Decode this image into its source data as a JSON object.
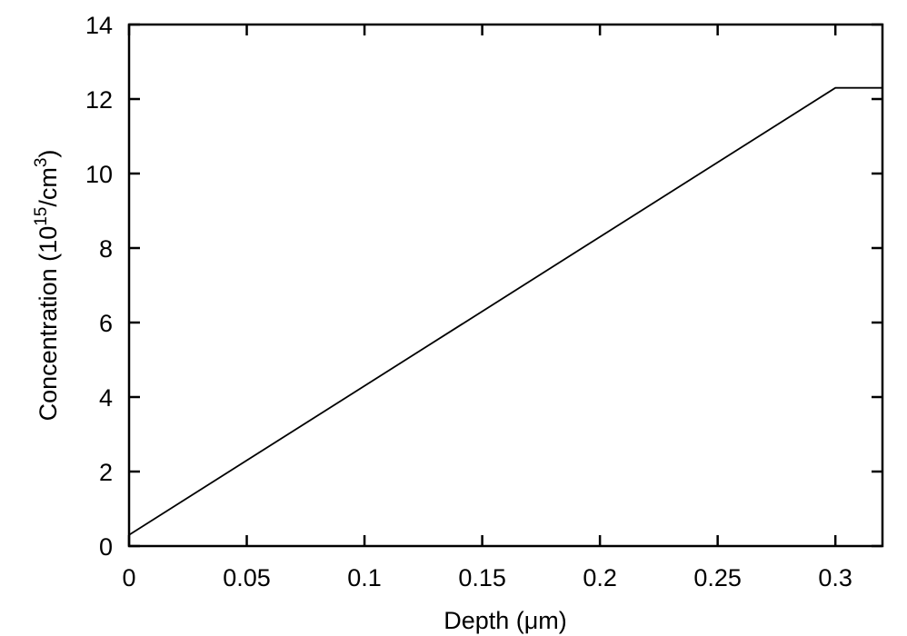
{
  "chart_data": {
    "type": "line",
    "xlabel": "Depth (μm)",
    "ylabel": {
      "prefix": "Concentration (10",
      "sup1": "15",
      "mid": "/cm",
      "sup2": "3",
      "suffix": ")"
    },
    "xlim": [
      0,
      0.32
    ],
    "ylim": [
      0,
      14
    ],
    "x_ticks": [
      "0",
      "0.05",
      "0.1",
      "0.15",
      "0.2",
      "0.25",
      "0.3"
    ],
    "x_tick_values": [
      0,
      0.05,
      0.1,
      0.15,
      0.2,
      0.25,
      0.3
    ],
    "y_ticks": [
      "0",
      "2",
      "4",
      "6",
      "8",
      "10",
      "12",
      "14"
    ],
    "y_tick_values": [
      0,
      2,
      4,
      6,
      8,
      10,
      12,
      14
    ],
    "grid": false,
    "color": "#000000",
    "series": [
      {
        "x": [
          0,
          0.3,
          0.32
        ],
        "y": [
          0.3,
          12.3,
          12.3
        ]
      }
    ]
  }
}
